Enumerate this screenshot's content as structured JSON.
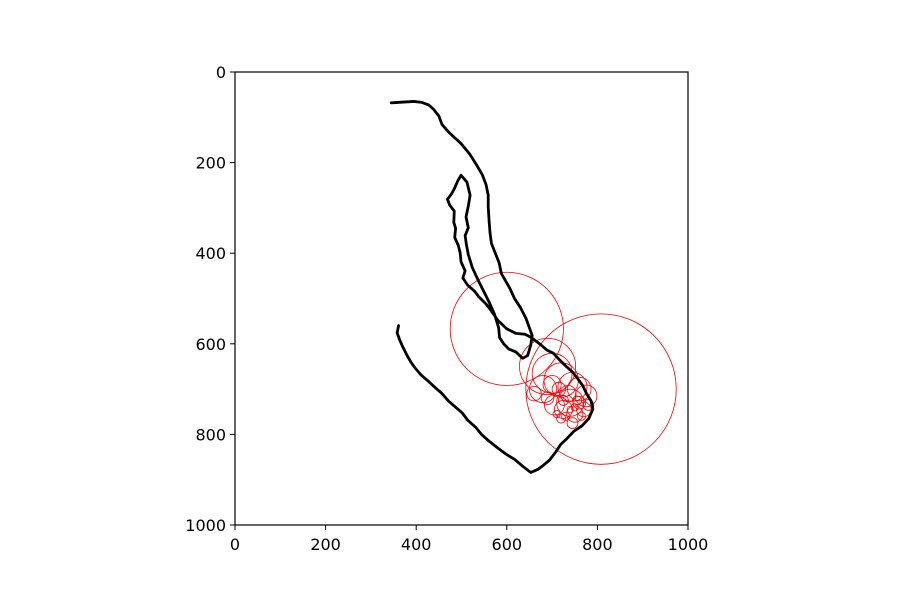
{
  "chart_data": {
    "type": "scatter",
    "title": "",
    "xlabel": "",
    "ylabel": "",
    "xlim": [
      0,
      1000
    ],
    "ylim": [
      1000,
      0
    ],
    "y_inverted": true,
    "grid": false,
    "legend": "none",
    "x_ticks": [
      "0",
      "200",
      "400",
      "600",
      "800",
      "1000"
    ],
    "y_ticks": [
      "0",
      "200",
      "400",
      "600",
      "800",
      "1000"
    ],
    "trajectory": {
      "color": "#000000",
      "points": [
        [
          345,
          68
        ],
        [
          395,
          65
        ],
        [
          412,
          67
        ],
        [
          428,
          73
        ],
        [
          438,
          82
        ],
        [
          450,
          97
        ],
        [
          457,
          116
        ],
        [
          474,
          135
        ],
        [
          499,
          158
        ],
        [
          518,
          181
        ],
        [
          532,
          203
        ],
        [
          546,
          227
        ],
        [
          554,
          248
        ],
        [
          559,
          272
        ],
        [
          559,
          298
        ],
        [
          561,
          330
        ],
        [
          563,
          355
        ],
        [
          566,
          378
        ],
        [
          573,
          396
        ],
        [
          583,
          421
        ],
        [
          588,
          445
        ],
        [
          607,
          478
        ],
        [
          617,
          500
        ],
        [
          630,
          520
        ],
        [
          642,
          543
        ],
        [
          650,
          565
        ],
        [
          656,
          582
        ],
        [
          653,
          602
        ],
        [
          646,
          626
        ],
        [
          635,
          632
        ],
        [
          620,
          618
        ],
        [
          605,
          612
        ],
        [
          593,
          600
        ],
        [
          584,
          586
        ],
        [
          582,
          565
        ],
        [
          573,
          535
        ],
        [
          561,
          508
        ],
        [
          549,
          484
        ],
        [
          536,
          458
        ],
        [
          524,
          432
        ],
        [
          515,
          403
        ],
        [
          511,
          382
        ],
        [
          508,
          361
        ],
        [
          515,
          344
        ],
        [
          510,
          320
        ],
        [
          515,
          296
        ],
        [
          519,
          272
        ],
        [
          512,
          243
        ],
        [
          499,
          228
        ],
        [
          492,
          240
        ],
        [
          484,
          258
        ],
        [
          478,
          269
        ],
        [
          469,
          281
        ],
        [
          474,
          294
        ],
        [
          484,
          307
        ],
        [
          483,
          332
        ],
        [
          487,
          345
        ],
        [
          485,
          365
        ],
        [
          493,
          383
        ],
        [
          497,
          399
        ],
        [
          499,
          419
        ],
        [
          508,
          439
        ],
        [
          503,
          455
        ],
        [
          514,
          471
        ],
        [
          529,
          484
        ],
        [
          537,
          495
        ],
        [
          555,
          513
        ],
        [
          565,
          526
        ],
        [
          580,
          548
        ],
        [
          600,
          567
        ],
        [
          620,
          577
        ],
        [
          640,
          579
        ],
        [
          654,
          586
        ],
        [
          663,
          593
        ],
        [
          676,
          603
        ],
        [
          689,
          614
        ],
        [
          703,
          621
        ],
        [
          716,
          635
        ],
        [
          730,
          649
        ],
        [
          745,
          662
        ],
        [
          758,
          679
        ],
        [
          768,
          693
        ],
        [
          776,
          710
        ],
        [
          786,
          726
        ],
        [
          790,
          744
        ],
        [
          781,
          765
        ],
        [
          766,
          781
        ],
        [
          748,
          793
        ],
        [
          732,
          810
        ],
        [
          719,
          822
        ],
        [
          708,
          839
        ],
        [
          695,
          856
        ],
        [
          681,
          868
        ],
        [
          669,
          877
        ],
        [
          653,
          884
        ],
        [
          636,
          871
        ],
        [
          617,
          855
        ],
        [
          599,
          844
        ],
        [
          580,
          830
        ],
        [
          561,
          815
        ],
        [
          545,
          801
        ],
        [
          531,
          784
        ],
        [
          514,
          769
        ],
        [
          502,
          753
        ],
        [
          486,
          739
        ],
        [
          472,
          727
        ],
        [
          456,
          709
        ],
        [
          440,
          695
        ],
        [
          426,
          682
        ],
        [
          411,
          669
        ],
        [
          398,
          654
        ],
        [
          388,
          640
        ],
        [
          379,
          624
        ],
        [
          370,
          606
        ],
        [
          363,
          590
        ],
        [
          358,
          576
        ],
        [
          361,
          560
        ]
      ]
    },
    "circles": {
      "color": "#ff0000",
      "items": [
        [
          600,
          567,
          125
        ],
        [
          808,
          700,
          166
        ],
        [
          690,
          650,
          62
        ],
        [
          700,
          665,
          44
        ],
        [
          720,
          680,
          38
        ],
        [
          680,
          700,
          30
        ],
        [
          745,
          695,
          32
        ],
        [
          760,
          700,
          26
        ],
        [
          775,
          715,
          24
        ],
        [
          740,
          730,
          30
        ],
        [
          705,
          735,
          22
        ],
        [
          725,
          745,
          20
        ],
        [
          750,
          755,
          18
        ],
        [
          770,
          745,
          16
        ],
        [
          735,
          710,
          18
        ],
        [
          715,
          700,
          15
        ],
        [
          690,
          720,
          14
        ],
        [
          760,
          730,
          14
        ],
        [
          745,
          775,
          12
        ],
        [
          720,
          765,
          10
        ],
        [
          700,
          690,
          20
        ],
        [
          660,
          710,
          16
        ],
        [
          780,
          735,
          12
        ],
        [
          755,
          725,
          10
        ],
        [
          730,
          760,
          9
        ],
        [
          710,
          755,
          8
        ],
        [
          740,
          745,
          7
        ],
        [
          765,
          760,
          9
        ],
        [
          725,
          725,
          11
        ],
        [
          750,
          740,
          8
        ]
      ]
    }
  }
}
